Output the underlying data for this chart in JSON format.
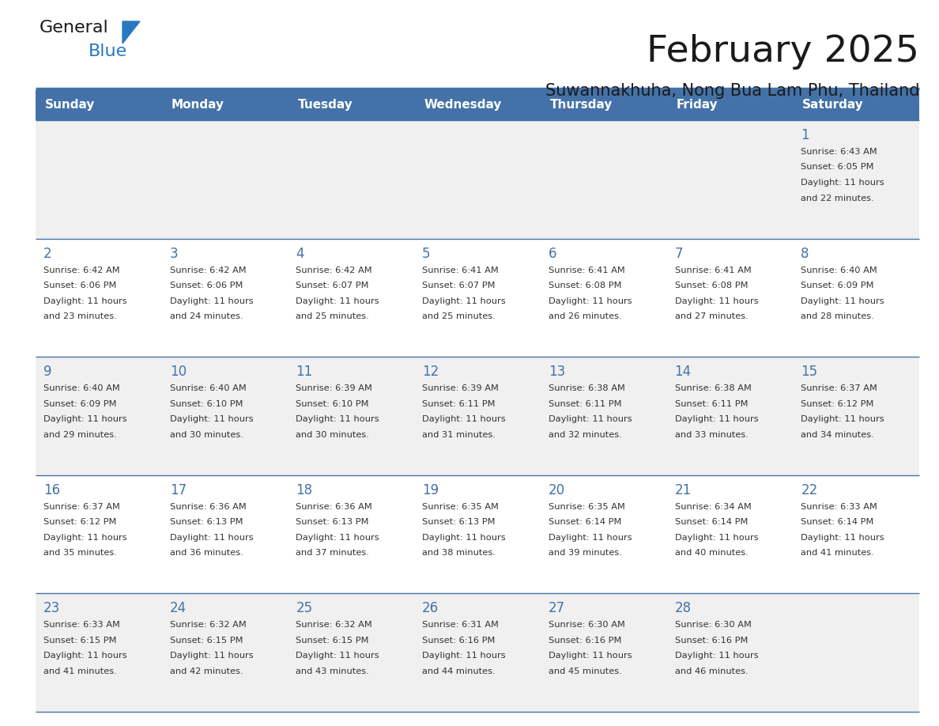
{
  "title": "February 2025",
  "subtitle": "Suwannakhuha, Nong Bua Lam Phu, Thailand",
  "header_bg": "#4472a8",
  "header_text": "#ffffff",
  "header_days": [
    "Sunday",
    "Monday",
    "Tuesday",
    "Wednesday",
    "Thursday",
    "Friday",
    "Saturday"
  ],
  "row_bg_odd": "#f0f0f0",
  "row_bg_even": "#ffffff",
  "cell_border": "#4472a8",
  "day_number_color": "#4472a8",
  "text_color": "#333333",
  "logo_general_color": "#1a1a1a",
  "logo_blue_color": "#2878c0",
  "calendar_data": [
    [
      null,
      null,
      null,
      null,
      null,
      null,
      {
        "day": 1,
        "sunrise": "6:43 AM",
        "sunset": "6:05 PM",
        "daylight": "11 hours and 22 minutes."
      }
    ],
    [
      {
        "day": 2,
        "sunrise": "6:42 AM",
        "sunset": "6:06 PM",
        "daylight": "11 hours and 23 minutes."
      },
      {
        "day": 3,
        "sunrise": "6:42 AM",
        "sunset": "6:06 PM",
        "daylight": "11 hours and 24 minutes."
      },
      {
        "day": 4,
        "sunrise": "6:42 AM",
        "sunset": "6:07 PM",
        "daylight": "11 hours and 25 minutes."
      },
      {
        "day": 5,
        "sunrise": "6:41 AM",
        "sunset": "6:07 PM",
        "daylight": "11 hours and 25 minutes."
      },
      {
        "day": 6,
        "sunrise": "6:41 AM",
        "sunset": "6:08 PM",
        "daylight": "11 hours and 26 minutes."
      },
      {
        "day": 7,
        "sunrise": "6:41 AM",
        "sunset": "6:08 PM",
        "daylight": "11 hours and 27 minutes."
      },
      {
        "day": 8,
        "sunrise": "6:40 AM",
        "sunset": "6:09 PM",
        "daylight": "11 hours and 28 minutes."
      }
    ],
    [
      {
        "day": 9,
        "sunrise": "6:40 AM",
        "sunset": "6:09 PM",
        "daylight": "11 hours and 29 minutes."
      },
      {
        "day": 10,
        "sunrise": "6:40 AM",
        "sunset": "6:10 PM",
        "daylight": "11 hours and 30 minutes."
      },
      {
        "day": 11,
        "sunrise": "6:39 AM",
        "sunset": "6:10 PM",
        "daylight": "11 hours and 30 minutes."
      },
      {
        "day": 12,
        "sunrise": "6:39 AM",
        "sunset": "6:11 PM",
        "daylight": "11 hours and 31 minutes."
      },
      {
        "day": 13,
        "sunrise": "6:38 AM",
        "sunset": "6:11 PM",
        "daylight": "11 hours and 32 minutes."
      },
      {
        "day": 14,
        "sunrise": "6:38 AM",
        "sunset": "6:11 PM",
        "daylight": "11 hours and 33 minutes."
      },
      {
        "day": 15,
        "sunrise": "6:37 AM",
        "sunset": "6:12 PM",
        "daylight": "11 hours and 34 minutes."
      }
    ],
    [
      {
        "day": 16,
        "sunrise": "6:37 AM",
        "sunset": "6:12 PM",
        "daylight": "11 hours and 35 minutes."
      },
      {
        "day": 17,
        "sunrise": "6:36 AM",
        "sunset": "6:13 PM",
        "daylight": "11 hours and 36 minutes."
      },
      {
        "day": 18,
        "sunrise": "6:36 AM",
        "sunset": "6:13 PM",
        "daylight": "11 hours and 37 minutes."
      },
      {
        "day": 19,
        "sunrise": "6:35 AM",
        "sunset": "6:13 PM",
        "daylight": "11 hours and 38 minutes."
      },
      {
        "day": 20,
        "sunrise": "6:35 AM",
        "sunset": "6:14 PM",
        "daylight": "11 hours and 39 minutes."
      },
      {
        "day": 21,
        "sunrise": "6:34 AM",
        "sunset": "6:14 PM",
        "daylight": "11 hours and 40 minutes."
      },
      {
        "day": 22,
        "sunrise": "6:33 AM",
        "sunset": "6:14 PM",
        "daylight": "11 hours and 41 minutes."
      }
    ],
    [
      {
        "day": 23,
        "sunrise": "6:33 AM",
        "sunset": "6:15 PM",
        "daylight": "11 hours and 41 minutes."
      },
      {
        "day": 24,
        "sunrise": "6:32 AM",
        "sunset": "6:15 PM",
        "daylight": "11 hours and 42 minutes."
      },
      {
        "day": 25,
        "sunrise": "6:32 AM",
        "sunset": "6:15 PM",
        "daylight": "11 hours and 43 minutes."
      },
      {
        "day": 26,
        "sunrise": "6:31 AM",
        "sunset": "6:16 PM",
        "daylight": "11 hours and 44 minutes."
      },
      {
        "day": 27,
        "sunrise": "6:30 AM",
        "sunset": "6:16 PM",
        "daylight": "11 hours and 45 minutes."
      },
      {
        "day": 28,
        "sunrise": "6:30 AM",
        "sunset": "6:16 PM",
        "daylight": "11 hours and 46 minutes."
      },
      null
    ]
  ]
}
